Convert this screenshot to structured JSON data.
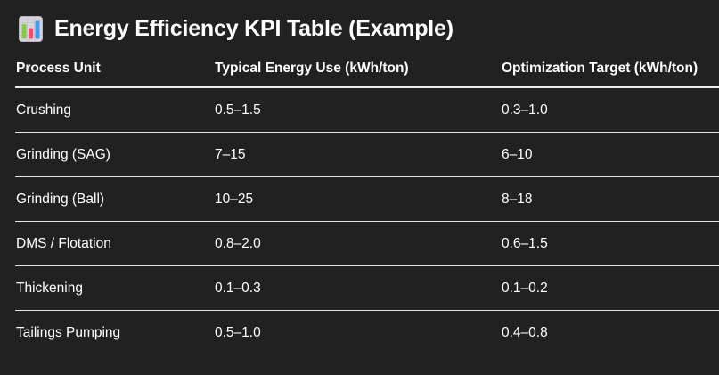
{
  "header": {
    "title": "Energy Efficiency KPI Table (Example)",
    "icon": "bar-chart-icon"
  },
  "table": {
    "columns": [
      "Process Unit",
      "Typical Energy Use (kWh/ton)",
      "Optimization Target (kWh/ton)"
    ],
    "rows": [
      [
        "Crushing",
        "0.5–1.5",
        "0.3–1.0"
      ],
      [
        "Grinding (SAG)",
        "7–15",
        "6–10"
      ],
      [
        "Grinding (Ball)",
        "10–25",
        "8–18"
      ],
      [
        "DMS / Flotation",
        "0.8–2.0",
        "0.6–1.5"
      ],
      [
        "Thickening",
        "0.1–0.3",
        "0.1–0.2"
      ],
      [
        "Tailings Pumping",
        "0.5–1.0",
        "0.4–0.8"
      ]
    ]
  },
  "chart_data": {
    "type": "table",
    "title": "Energy Efficiency KPI Table (Example)",
    "columns": [
      "Process Unit",
      "Typical Energy Use (kWh/ton)",
      "Optimization Target (kWh/ton)"
    ],
    "rows": [
      [
        "Crushing",
        "0.5–1.5",
        "0.3–1.0"
      ],
      [
        "Grinding (SAG)",
        "7–15",
        "6–10"
      ],
      [
        "Grinding (Ball)",
        "10–25",
        "8–18"
      ],
      [
        "DMS / Flotation",
        "0.8–2.0",
        "0.6–1.5"
      ],
      [
        "Thickening",
        "0.1–0.3",
        "0.1–0.2"
      ],
      [
        "Tailings Pumping",
        "0.5–1.0",
        "0.4–0.8"
      ]
    ],
    "units": "kWh/ton",
    "layout": {
      "header_divider": true,
      "row_dividers": true,
      "grid": "horizontal-only"
    }
  },
  "colors": {
    "background": "#212121",
    "text": "#ffffff",
    "header_divider": "#ececec",
    "row_divider": "#e3e3e3",
    "icon_background": "#d8d4db",
    "icon_bar_green": "#7fcb4f",
    "icon_bar_pink": "#ee4e73",
    "icon_bar_blue": "#3aa0f3"
  }
}
